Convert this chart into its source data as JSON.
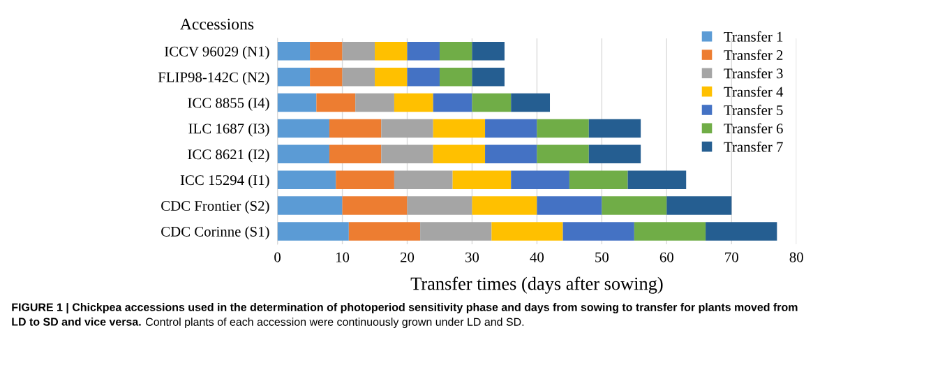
{
  "chart_data": {
    "type": "bar",
    "orientation": "horizontal",
    "stacked": true,
    "ylabel": "Accessions",
    "xlabel": "Transfer times (days after sowing)",
    "categories": [
      "ICCV 96029 (N1)",
      "FLIP98-142C (N2)",
      "ICC 8855 (I4)",
      "ILC 1687 (I3)",
      "ICC 8621 (I2)",
      "ICC 15294 (I1)",
      "CDC Frontier (S2)",
      "CDC Corinne (S1)"
    ],
    "series": [
      {
        "name": "Transfer 1",
        "color": "#5b9bd5",
        "values": [
          5,
          5,
          6,
          8,
          8,
          9,
          10,
          11
        ]
      },
      {
        "name": "Transfer 2",
        "color": "#ed7d31",
        "values": [
          5,
          5,
          6,
          8,
          8,
          9,
          10,
          11
        ]
      },
      {
        "name": "Transfer 3",
        "color": "#a5a5a5",
        "values": [
          5,
          5,
          6,
          8,
          8,
          9,
          10,
          11
        ]
      },
      {
        "name": "Transfer 4",
        "color": "#ffc000",
        "values": [
          5,
          5,
          6,
          8,
          8,
          9,
          10,
          11
        ]
      },
      {
        "name": "Transfer 5",
        "color": "#4472c4",
        "values": [
          5,
          5,
          6,
          8,
          8,
          9,
          10,
          11
        ]
      },
      {
        "name": "Transfer 6",
        "color": "#70ad47",
        "values": [
          5,
          5,
          6,
          8,
          8,
          9,
          10,
          11
        ]
      },
      {
        "name": "Transfer 7",
        "color": "#255e91",
        "values": [
          5,
          5,
          6,
          8,
          8,
          9,
          10,
          11
        ]
      }
    ],
    "xlim": [
      0,
      80
    ],
    "xticks": [
      0,
      10,
      20,
      30,
      40,
      50,
      60,
      70,
      80
    ],
    "grid": "x",
    "legend": "right",
    "annotations": [
      "FIGURE 1 | Chickpea accessions used in the determination of photoperiod sensitivity phase and days from sowing to transfer for plants moved from\nLD to SD and vice versa.",
      " Control plants of each accession were continuously grown under LD and SD."
    ]
  }
}
